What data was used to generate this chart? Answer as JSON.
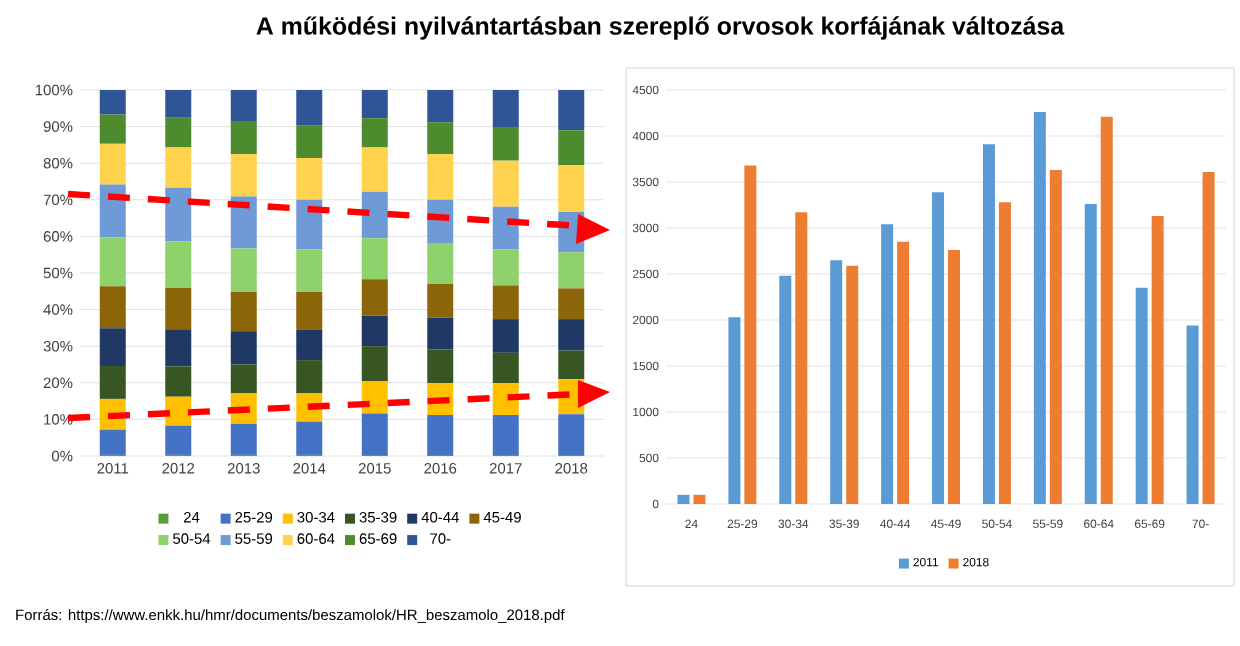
{
  "chart_data": [
    {
      "type": "bar",
      "stacked": true,
      "title": "A működési nyilvántartásban szereplő orvosok korfájának változása",
      "annotations": [
        "Forrás: https://www.enkk.hu/hmr/documents/beszamolok/HR_beszamolo_2018.pdf"
      ],
      "categories": [
        "2011",
        "2012",
        "2013",
        "2014",
        "2015",
        "2016",
        "2017",
        "2018"
      ],
      "ylim": [
        0,
        100
      ],
      "yticks": [
        {
          "value": 0,
          "label": "0%"
        },
        {
          "value": 10,
          "label": "10%"
        },
        {
          "value": 20,
          "label": "20%"
        },
        {
          "value": 30,
          "label": "30%"
        },
        {
          "value": 40,
          "label": "40%"
        },
        {
          "value": 50,
          "label": "50%"
        },
        {
          "value": 60,
          "label": "60%"
        },
        {
          "value": 70,
          "label": "70%"
        },
        {
          "value": 80,
          "label": "80%"
        },
        {
          "value": 90,
          "label": "90%"
        },
        {
          "value": 100,
          "label": "100%"
        }
      ],
      "grid": "y",
      "legend": "bottom",
      "series": [
        {
          "name": "24",
          "color": "#5a9e3a",
          "values": [
            0.3,
            0.3,
            0.3,
            0.3,
            0.3,
            0.3,
            0.3,
            0.3
          ]
        },
        {
          "name": "25-29",
          "color": "#4472c4",
          "values": [
            6.9,
            8.0,
            8.5,
            9.1,
            11.3,
            10.9,
            10.9,
            11.1
          ]
        },
        {
          "name": "30-34",
          "color": "#ffc000",
          "values": [
            8.4,
            7.9,
            8.3,
            7.7,
            8.8,
            8.7,
            8.7,
            9.6
          ]
        },
        {
          "name": "35-39",
          "color": "#375623",
          "values": [
            9.0,
            8.3,
            7.9,
            9.1,
            9.6,
            9.2,
            8.3,
            7.8
          ]
        },
        {
          "name": "40-44",
          "color": "#1f3864",
          "values": [
            10.3,
            10.1,
            9.1,
            8.4,
            8.3,
            8.7,
            9.2,
            8.6
          ]
        },
        {
          "name": "45-49",
          "color": "#8b6508",
          "values": [
            11.5,
            11.4,
            10.7,
            10.2,
            10.0,
            9.2,
            9.2,
            8.4
          ]
        },
        {
          "name": "50-54",
          "color": "#8fd16b",
          "values": [
            13.3,
            12.6,
            11.9,
            11.6,
            11.2,
            11.2,
            9.8,
            9.9
          ]
        },
        {
          "name": "55-59",
          "color": "#6f9ad8",
          "values": [
            14.5,
            14.7,
            14.2,
            13.6,
            12.7,
            11.8,
            11.7,
            11.0
          ]
        },
        {
          "name": "60-64",
          "color": "#ffd34d",
          "values": [
            11.1,
            11.0,
            11.6,
            11.4,
            12.1,
            12.5,
            12.6,
            12.8
          ]
        },
        {
          "name": "65-69",
          "color": "#4e8a2e",
          "values": [
            8.0,
            8.3,
            8.8,
            9.0,
            8.0,
            8.7,
            9.2,
            9.5
          ]
        },
        {
          "name": "70-",
          "color": "#2f5597",
          "values": [
            6.7,
            7.4,
            8.7,
            9.6,
            7.7,
            8.8,
            10.1,
            11.0
          ]
        }
      ]
    },
    {
      "type": "bar",
      "categories": [
        "24",
        "25-29",
        "30-34",
        "35-39",
        "40-44",
        "45-49",
        "50-54",
        "55-59",
        "60-64",
        "65-69",
        "70-"
      ],
      "ylim": [
        0,
        4500
      ],
      "yticks": [
        0,
        500,
        1000,
        1500,
        2000,
        2500,
        3000,
        3500,
        4000,
        4500
      ],
      "grid": "y",
      "legend": "bottom",
      "series": [
        {
          "name": "2011",
          "color": "#5b9bd5",
          "values": [
            100,
            2030,
            2480,
            2650,
            3040,
            3390,
            3910,
            4260,
            3260,
            2350,
            1940
          ]
        },
        {
          "name": "2018",
          "color": "#ed7d31",
          "values": [
            100,
            3680,
            3170,
            2590,
            2850,
            2760,
            3280,
            3630,
            4210,
            3130,
            3610
          ]
        }
      ]
    }
  ]
}
